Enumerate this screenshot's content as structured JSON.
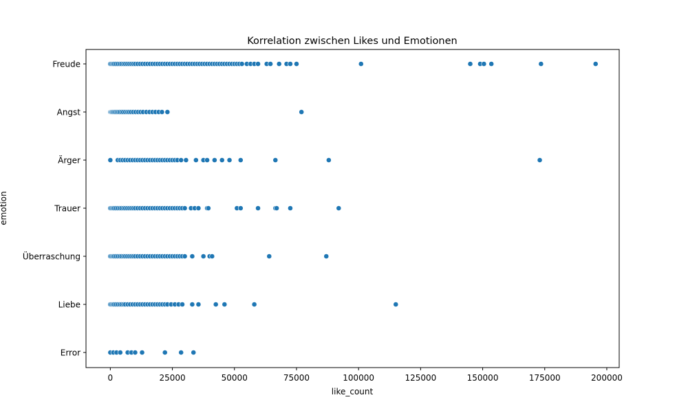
{
  "chart_data": {
    "type": "scatter",
    "title": "Korrelation zwischen Likes und Emotionen",
    "xlabel": "like_count",
    "ylabel": "emotion",
    "xlim": [
      -9800,
      205000
    ],
    "x_ticks": [
      0,
      25000,
      50000,
      75000,
      100000,
      125000,
      150000,
      175000,
      200000
    ],
    "x_tick_labels": [
      "0",
      "25000",
      "50000",
      "75000",
      "100000",
      "125000",
      "150000",
      "175000",
      "200000"
    ],
    "categories": [
      "Freude",
      "Angst",
      "Ärger",
      "Trauer",
      "Überraschung",
      "Liebe",
      "Error"
    ],
    "grid": false,
    "legend": "none",
    "marker_color": "#1f77b4",
    "series": [
      {
        "category": "Freude",
        "x": [
          0,
          500,
          1000,
          1500,
          2200,
          3000,
          3800,
          4500,
          5300,
          6000,
          6800,
          7600,
          8400,
          9200,
          10000,
          11000,
          12000,
          13000,
          14000,
          15000,
          16000,
          17000,
          18000,
          19000,
          20000,
          21000,
          22000,
          23000,
          24000,
          25000,
          26000,
          27000,
          28000,
          29000,
          30000,
          31000,
          32000,
          33000,
          34000,
          35000,
          36000,
          37000,
          38000,
          39000,
          40000,
          41000,
          42000,
          43000,
          44000,
          45000,
          46000,
          47000,
          48000,
          49000,
          50000,
          51000,
          52000,
          53000,
          55000,
          56500,
          58000,
          59500,
          63000,
          64500,
          68000,
          71000,
          72500,
          75000,
          101000,
          145000,
          149000,
          150500,
          153500,
          173500,
          195500
        ]
      },
      {
        "category": "Angst",
        "x": [
          0,
          300,
          600,
          1000,
          1500,
          2000,
          2600,
          3200,
          3800,
          4500,
          5200,
          6000,
          6800,
          7500,
          8300,
          9200,
          10200,
          11200,
          12200,
          13200,
          14500,
          15800,
          17000,
          18200,
          19500,
          20800,
          23000,
          77000
        ]
      },
      {
        "category": "Ärger",
        "x": [
          0,
          3000,
          4000,
          5000,
          6000,
          7000,
          8000,
          9000,
          10000,
          11000,
          12000,
          13000,
          14000,
          15000,
          16000,
          17000,
          18000,
          19000,
          20000,
          21000,
          22000,
          23000,
          24000,
          25000,
          26000,
          27000,
          28500,
          30500,
          34500,
          37500,
          39000,
          42000,
          45000,
          48000,
          52500,
          66500,
          88000,
          173000
        ]
      },
      {
        "category": "Trauer",
        "x": [
          0,
          500,
          1000,
          1500,
          2200,
          3000,
          3800,
          4500,
          5300,
          6000,
          6800,
          7600,
          8400,
          9200,
          10000,
          11000,
          12000,
          13000,
          14000,
          15000,
          16000,
          17000,
          18000,
          19000,
          20000,
          21000,
          22000,
          23000,
          24000,
          25000,
          26000,
          27000,
          28000,
          29000,
          30000,
          32500,
          34000,
          35500,
          39000,
          39500,
          51000,
          52500,
          59500,
          66500,
          67000,
          72500,
          92000
        ]
      },
      {
        "category": "Überraschung",
        "x": [
          0,
          500,
          1000,
          1500,
          2200,
          3000,
          3800,
          4500,
          5300,
          6000,
          6800,
          7600,
          8400,
          9200,
          10000,
          11000,
          12000,
          13000,
          14000,
          15000,
          16000,
          17000,
          18000,
          19000,
          20000,
          21000,
          22000,
          23000,
          24000,
          25000,
          26000,
          27000,
          28000,
          29000,
          30000,
          33000,
          37500,
          40000,
          41000,
          64000,
          87000
        ]
      },
      {
        "category": "Liebe",
        "x": [
          0,
          500,
          1000,
          1500,
          2200,
          3000,
          3800,
          4500,
          5300,
          6000,
          7000,
          8000,
          9000,
          10000,
          11000,
          12000,
          13000,
          14000,
          15000,
          16000,
          17000,
          18000,
          19000,
          20000,
          21000,
          22000,
          23000,
          24500,
          26000,
          27500,
          29000,
          33000,
          35500,
          42500,
          46000,
          58000,
          115000
        ]
      },
      {
        "category": "Error",
        "x": [
          0,
          1200,
          2500,
          4000,
          7000,
          8500,
          10000,
          12800,
          22000,
          28500,
          33500
        ]
      }
    ]
  }
}
